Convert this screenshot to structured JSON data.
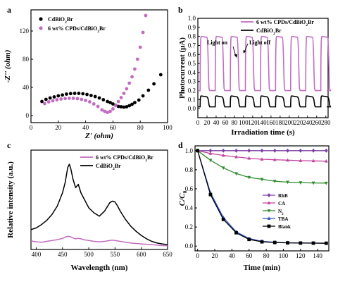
{
  "chart_data": [
    {
      "panel": "a",
      "type": "scatter",
      "xlabel": "Z' (ohm)",
      "ylabel": "-Z'' (ohm)",
      "xlim": [
        0,
        100
      ],
      "ylim": [
        -10,
        150
      ],
      "xticks": [
        "0",
        "20",
        "40",
        "60",
        "80",
        "100"
      ],
      "yticks": [
        "0",
        "40",
        "80",
        "120"
      ],
      "legend_position": "top-left",
      "series": [
        {
          "name": "CdBiO2Br",
          "color": "#000000",
          "x": [
            8,
            11,
            14,
            17,
            20,
            23,
            26,
            29,
            32,
            35,
            38,
            41,
            44,
            47,
            50,
            53,
            56,
            58,
            60,
            62,
            64,
            66,
            68,
            70,
            72,
            74,
            76,
            79,
            82,
            86,
            90,
            95
          ],
          "y": [
            20,
            23,
            25,
            26.5,
            28,
            29.2,
            30.5,
            31.2,
            31.5,
            31.5,
            31,
            30,
            28.5,
            27,
            25,
            22.5,
            20,
            18.5,
            16.5,
            14.5,
            13,
            12.5,
            12,
            12.5,
            14,
            16,
            18.5,
            22,
            28,
            36,
            45,
            58
          ]
        },
        {
          "name": "6 wt% CPDs/CdBiO2Br",
          "color": "#c26cc0",
          "x": [
            10,
            13,
            16,
            19,
            22,
            25,
            28,
            31,
            34,
            37,
            40,
            43,
            46,
            49,
            52,
            54,
            56,
            58,
            60,
            62,
            64,
            66,
            68,
            70,
            72,
            74,
            76,
            78,
            80,
            82,
            84
          ],
          "y": [
            17,
            19.5,
            21,
            22.5,
            23.5,
            24.2,
            24.5,
            24.5,
            24,
            23,
            21.5,
            19.5,
            16.5,
            13,
            8,
            6,
            4.5,
            6,
            9.5,
            14,
            20,
            25.5,
            31.5,
            38,
            46,
            55,
            66,
            80,
            97,
            118,
            142
          ]
        }
      ]
    },
    {
      "panel": "b",
      "type": "line",
      "xlabel": "Irradiation time (s)",
      "ylabel": "Photocurrent (μA)",
      "xlim": [
        0,
        285
      ],
      "ylim": [
        -0.1,
        1.0
      ],
      "xticks": [
        "0",
        "20",
        "40",
        "60",
        "80",
        "100",
        "120",
        "140",
        "160",
        "180",
        "200",
        "220",
        "240",
        "260",
        "280"
      ],
      "yticks": [
        "0.0",
        "0.1",
        "0.2",
        "0.3",
        "0.4",
        "0.5",
        "0.6",
        "0.7",
        "0.8",
        "0.9",
        "1.0"
      ],
      "legend_position": "top-right",
      "light_on_label": "Light on",
      "light_off_label": "Light off",
      "on_off_cycle": {
        "start": 5,
        "on_duration": 18,
        "period": 33,
        "cycles": 9
      },
      "series": [
        {
          "name": "6 wt% CPDs/CdBiO2Br",
          "color": "#c26cc0",
          "off_level": 0.2,
          "on_level": 0.8
        },
        {
          "name": "CdBiO2Br",
          "color": "#000000",
          "off_level": 0.02,
          "on_level": 0.14
        }
      ]
    },
    {
      "panel": "c",
      "type": "line",
      "xlabel": "Wavelength (nm)",
      "ylabel": "Relative intensity (a.u.)",
      "xlim": [
        390,
        650
      ],
      "xticks": [
        "400",
        "450",
        "500",
        "550",
        "600",
        "650"
      ],
      "legend_position": "top-right",
      "series": [
        {
          "name": "6 wt% CPDs/CdBiO2Br",
          "color": "#c26cc0",
          "x": [
            390,
            400,
            410,
            420,
            430,
            440,
            450,
            455,
            460,
            465,
            470,
            475,
            480,
            485,
            490,
            500,
            510,
            520,
            530,
            540,
            545,
            550,
            560,
            570,
            580,
            590,
            600,
            610,
            620,
            630,
            640,
            650
          ],
          "y": [
            0.085,
            0.075,
            0.07,
            0.08,
            0.09,
            0.1,
            0.115,
            0.13,
            0.14,
            0.135,
            0.12,
            0.11,
            0.115,
            0.11,
            0.1,
            0.09,
            0.08,
            0.075,
            0.08,
            0.09,
            0.095,
            0.09,
            0.08,
            0.07,
            0.06,
            0.055,
            0.05,
            0.045,
            0.04,
            0.035,
            0.03,
            0.028
          ]
        },
        {
          "name": "CdBiO2Br",
          "color": "#000000",
          "x": [
            390,
            400,
            410,
            420,
            430,
            440,
            450,
            455,
            460,
            463,
            466,
            470,
            475,
            480,
            485,
            490,
            495,
            500,
            510,
            520,
            530,
            540,
            545,
            550,
            555,
            560,
            570,
            580,
            590,
            600,
            610,
            620,
            630,
            640,
            650
          ],
          "y": [
            0.22,
            0.24,
            0.28,
            0.33,
            0.4,
            0.5,
            0.66,
            0.78,
            0.96,
            1.0,
            0.94,
            0.82,
            0.72,
            0.76,
            0.66,
            0.6,
            0.54,
            0.48,
            0.42,
            0.38,
            0.44,
            0.54,
            0.56,
            0.55,
            0.5,
            0.44,
            0.34,
            0.26,
            0.2,
            0.15,
            0.11,
            0.08,
            0.06,
            0.05,
            0.04
          ]
        }
      ]
    },
    {
      "panel": "d",
      "type": "line",
      "xlabel": "Time (min)",
      "ylabel": "C/C0",
      "xlim": [
        0,
        150
      ],
      "ylim": [
        -0.05,
        1.0
      ],
      "xticks": [
        "0",
        "20",
        "40",
        "60",
        "80",
        "100",
        "120",
        "140"
      ],
      "yticks": [
        "0.0",
        "0.2",
        "0.4",
        "0.6",
        "0.8",
        "1.0"
      ],
      "legend_position": "bottom-right",
      "series": [
        {
          "name": "RhB",
          "color": "#7b3fa3",
          "marker": "diamond",
          "x": [
            0,
            15,
            30,
            45,
            60,
            75,
            90,
            105,
            120,
            135,
            150
          ],
          "y": [
            1.0,
            1.0,
            1.0,
            1.0,
            1.0,
            1.0,
            1.0,
            1.0,
            1.0,
            1.0,
            1.0
          ]
        },
        {
          "name": "CA",
          "color": "#c2449e",
          "marker": "triangle-up",
          "x": [
            0,
            15,
            30,
            45,
            60,
            75,
            90,
            105,
            120,
            135,
            150
          ],
          "y": [
            1.0,
            0.97,
            0.95,
            0.935,
            0.92,
            0.91,
            0.905,
            0.9,
            0.895,
            0.893,
            0.89
          ]
        },
        {
          "name": "N2",
          "color": "#2e8b2e",
          "marker": "triangle-down",
          "x": [
            0,
            15,
            30,
            45,
            60,
            75,
            90,
            105,
            120,
            135,
            150
          ],
          "y": [
            1.0,
            0.9,
            0.82,
            0.76,
            0.72,
            0.7,
            0.68,
            0.67,
            0.665,
            0.662,
            0.66
          ]
        },
        {
          "name": "TBA",
          "color": "#2b50c8",
          "marker": "triangle-up",
          "x": [
            0,
            15,
            30,
            45,
            60,
            75,
            90,
            105,
            120,
            135,
            150
          ],
          "y": [
            1.0,
            0.56,
            0.3,
            0.15,
            0.08,
            0.05,
            0.04,
            0.035,
            0.033,
            0.032,
            0.03
          ]
        },
        {
          "name": "Blank",
          "color": "#000000",
          "marker": "square",
          "x": [
            0,
            15,
            30,
            45,
            60,
            75,
            90,
            105,
            120,
            135,
            150
          ],
          "y": [
            1.0,
            0.54,
            0.28,
            0.14,
            0.07,
            0.045,
            0.038,
            0.034,
            0.032,
            0.031,
            0.03
          ]
        }
      ]
    }
  ]
}
